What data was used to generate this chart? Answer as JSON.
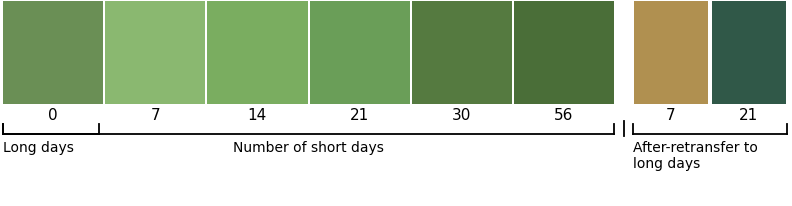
{
  "tick_labels_group1": [
    "0",
    "7",
    "14",
    "21",
    "30",
    "56"
  ],
  "tick_labels_group2": [
    "7",
    "21"
  ],
  "bracket_label1": "Long days",
  "bracket_label2": "Number of short days",
  "bracket_label3": "After-retransfer to\nlong days",
  "n_images_group1": 6,
  "n_images_group2": 2,
  "bg_color": "#ffffff",
  "text_color": "#000000",
  "bracket_color": "#000000",
  "label_fontsize": 10.0,
  "tick_fontsize": 11.0,
  "img_colors_group1": [
    "#8aab72",
    "#a8c485",
    "#7a9e5f",
    "#6b9455",
    "#5a7d48",
    "#4d6e3c"
  ],
  "img_colors_group2": [
    "#c4a860",
    "#3a6b5a"
  ]
}
